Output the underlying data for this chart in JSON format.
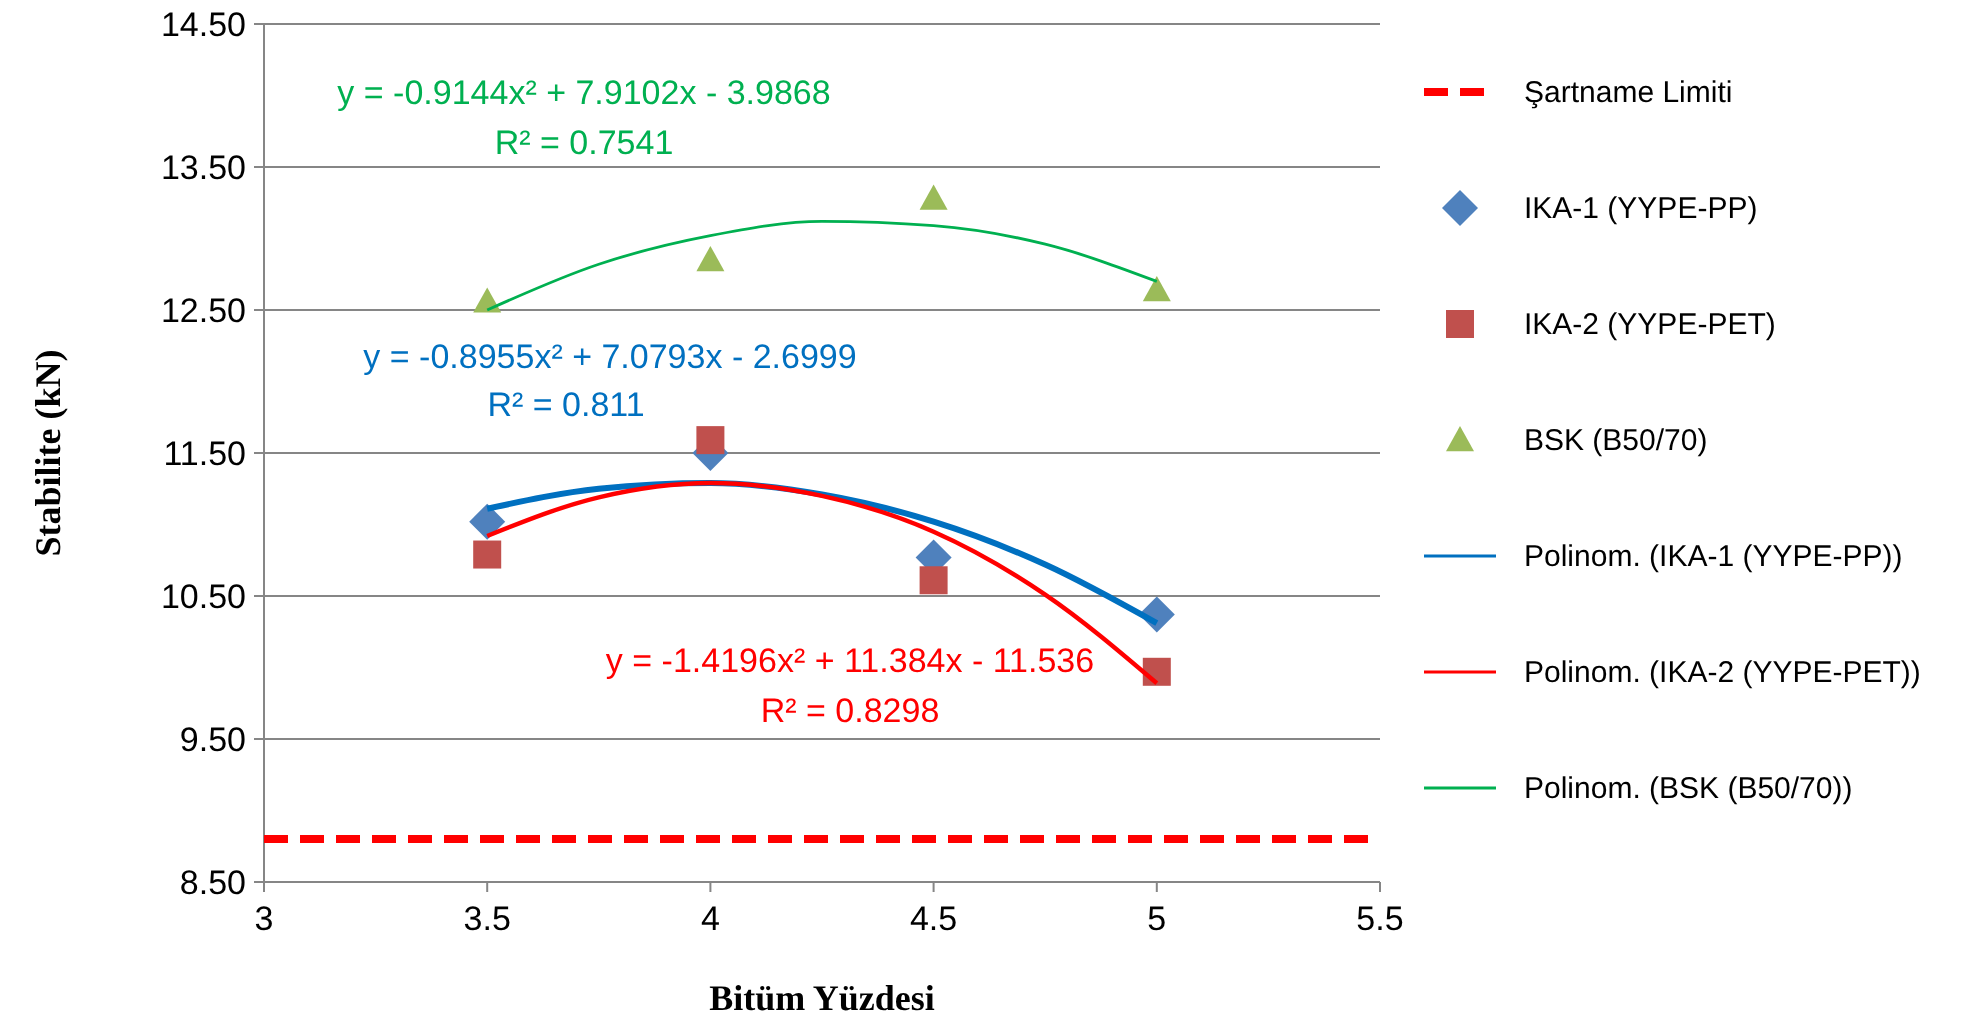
{
  "chart_data": {
    "type": "scatter",
    "xlabel": "Bitüm Yüzdesi",
    "ylabel": "Stabilite (kN)",
    "xlim": [
      3,
      5.5
    ],
    "xticks": [
      3,
      3.5,
      4,
      4.5,
      5,
      5.5
    ],
    "ylim": [
      8.5,
      14.5
    ],
    "yticks": [
      {
        "value": 8.5,
        "label": "8.50"
      },
      {
        "value": 9.5,
        "label": "9.50"
      },
      {
        "value": 10.5,
        "label": "10.50"
      },
      {
        "value": 11.5,
        "label": "11.50"
      },
      {
        "value": 12.5,
        "label": "12.50"
      },
      {
        "value": 13.5,
        "label": "13.50"
      },
      {
        "value": 14.5,
        "label": "14.50"
      }
    ],
    "grid": "y",
    "legend": "right",
    "ref_lines": [
      {
        "axis": "y",
        "value": 8.8,
        "label": "Şartname Limiti",
        "color": "#ff0000",
        "line_style": "dashed"
      }
    ],
    "series": [
      {
        "name": "IKA-1 (YYPE-PP)",
        "marker": "diamond",
        "color": "#4f81bd",
        "x": [
          3.5,
          4,
          4.5,
          5
        ],
        "values": [
          11.02,
          11.5,
          10.77,
          10.37
        ]
      },
      {
        "name": "IKA-2 (YYPE-PET)",
        "marker": "square",
        "color": "#c0504d",
        "x": [
          3.5,
          4,
          4.5,
          5
        ],
        "values": [
          10.79,
          11.59,
          10.61,
          9.97
        ]
      },
      {
        "name": "BSK (B50/70)",
        "marker": "triangle",
        "color": "#9bbb59",
        "x": [
          3.5,
          4,
          4.5,
          5
        ],
        "values": [
          12.56,
          12.85,
          13.28,
          12.64
        ]
      },
      {
        "name": "Polinom. (IKA-1 (YYPE-PP))",
        "type": "line",
        "marker": "none",
        "color": "#0070c0",
        "x": [
          3.5,
          3.75,
          4,
          4.25,
          4.5,
          4.75,
          5
        ],
        "values": [
          11.11,
          11.25,
          11.29,
          11.21,
          11.02,
          10.72,
          10.31
        ]
      },
      {
        "name": "Polinom. (IKA-2 (YYPE-PET))",
        "type": "line",
        "marker": "none",
        "color": "#ff0000",
        "x": [
          3.5,
          3.75,
          4,
          4.25,
          4.5,
          4.75,
          5
        ],
        "values": [
          10.92,
          11.19,
          11.29,
          11.2,
          10.95,
          10.51,
          9.89
        ]
      },
      {
        "name": "Polinom. (BSK (B50/70))",
        "type": "line",
        "marker": "none",
        "color": "#00b050",
        "x": [
          3.5,
          3.75,
          4,
          4.25,
          4.5,
          4.75,
          5
        ],
        "values": [
          12.5,
          12.82,
          13.02,
          13.12,
          13.09,
          12.96,
          12.7
        ]
      }
    ],
    "annotations": [
      "y = -0.8955x² + 7.0793x - 2.6999",
      "R² = 0.811",
      "y = -1.4196x² + 11.384x - 11.536",
      "R² = 0.8298",
      "y = -0.9144x² + 7.9102x - 3.9868",
      "R² = 0.7541"
    ]
  }
}
